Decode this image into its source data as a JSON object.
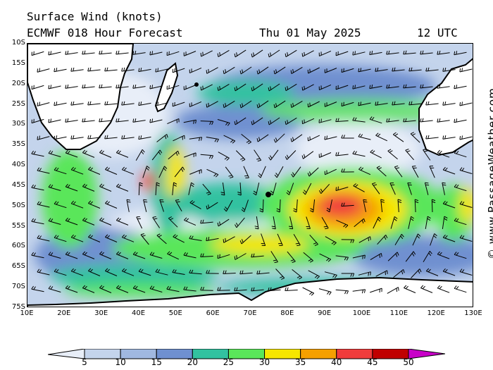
{
  "header": {
    "title": "Surface Wind (knots)",
    "model": "ECMWF 018 Hour Forecast",
    "date": "Thu 01 May 2025",
    "time": "12 UTC"
  },
  "map": {
    "lat_labels": [
      "10S",
      "15S",
      "20S",
      "25S",
      "30S",
      "35S",
      "40S",
      "45S",
      "50S",
      "55S",
      "60S",
      "65S",
      "70S",
      "75S"
    ],
    "lon_labels": [
      "10E",
      "20E",
      "30E",
      "40E",
      "50E",
      "60E",
      "70E",
      "80E",
      "90E",
      "100E",
      "110E",
      "120E",
      "130E"
    ],
    "lat_range_deg": [
      -10,
      -75
    ],
    "lon_range_deg": [
      10,
      130
    ],
    "features": {
      "strong_wind_core": "40-45 knots near 48S 90E",
      "secondary_core": "35-40 knots near 41S 44E",
      "continents": [
        "Africa",
        "Madagascar",
        "Australia",
        "Antarctica"
      ]
    }
  },
  "colorbar": {
    "labels": [
      "5",
      "10",
      "15",
      "20",
      "25",
      "30",
      "35",
      "40",
      "45",
      "50"
    ],
    "colors": [
      "#e8eef8",
      "#c4d4ec",
      "#a0b8e0",
      "#6f90d0",
      "#32c2a0",
      "#5ae65a",
      "#f6e600",
      "#f5a000",
      "#f03c3c",
      "#c00000",
      "#c800c8"
    ],
    "land_color": "#ffffff",
    "ocean_base_color": "#c4d4ec"
  },
  "credit": "© www.PassageWeather.com"
}
